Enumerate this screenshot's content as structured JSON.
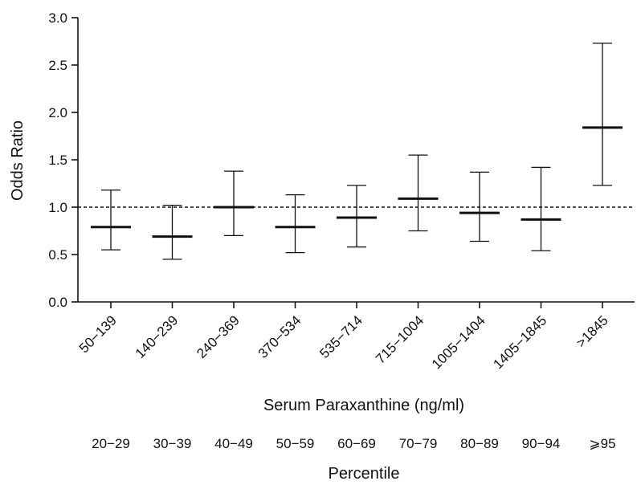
{
  "chart_data": {
    "type": "errorbar",
    "ylabel": "Odds Ratio",
    "xlabel": "Serum Paraxanthine (ng/ml)",
    "secondary_xlabel": "Percentile",
    "ylim": [
      0,
      3.0
    ],
    "yticks": [
      0.0,
      0.5,
      1.0,
      1.5,
      2.0,
      2.5,
      3.0
    ],
    "ytick_labels": [
      "0.0",
      "0.5",
      "1.0",
      "1.5",
      "2.0",
      "2.5",
      "3.0"
    ],
    "reference_line": 1.0,
    "categories": [
      "50−139",
      "140−239",
      "240−369",
      "370−534",
      "535−714",
      "715−1004",
      "1005−1404",
      "1405−1845",
      ">1845"
    ],
    "percentiles": [
      "20−29",
      "30−39",
      "40−49",
      "50−59",
      "60−69",
      "70−79",
      "80−89",
      "90−94",
      "⩾95"
    ],
    "values": [
      0.79,
      0.69,
      1.0,
      0.79,
      0.89,
      1.09,
      0.94,
      0.87,
      1.84
    ],
    "lower": [
      0.55,
      0.45,
      0.7,
      0.52,
      0.58,
      0.75,
      0.64,
      0.54,
      1.23
    ],
    "upper": [
      1.18,
      1.02,
      1.38,
      1.13,
      1.23,
      1.55,
      1.37,
      1.42,
      2.73
    ],
    "grid": false
  }
}
